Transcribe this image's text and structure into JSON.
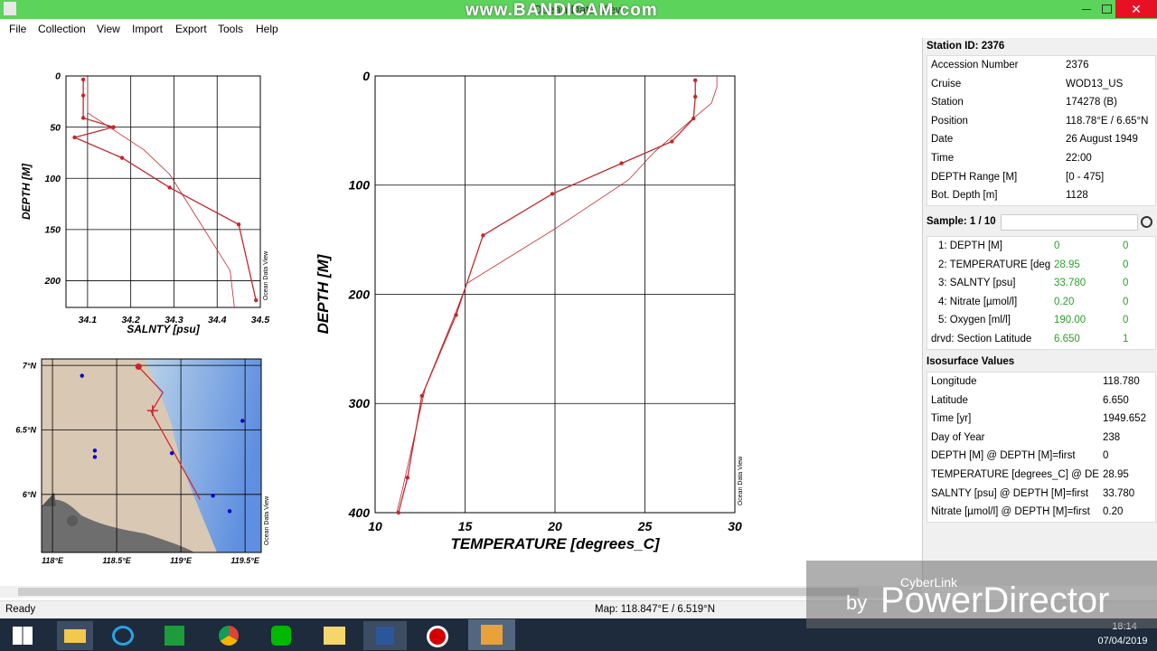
{
  "window": {
    "title": "Ocean Data View",
    "watermark": "www.BANDICAM.com"
  },
  "menu": [
    "File",
    "Collection",
    "View",
    "Import",
    "Export",
    "Tools",
    "Help"
  ],
  "salinity_plot": {
    "type": "line",
    "x_label": "SALNTY [psu]",
    "y_label": "DEPTH [M]",
    "side_label": "Ocean Data View",
    "xlim": [
      34.05,
      34.5
    ],
    "ylim": [
      0,
      226
    ],
    "y_inverted": true,
    "grid": true,
    "xticks": [
      34.1,
      34.2,
      34.3,
      34.4,
      34.5
    ],
    "yticks": [
      0,
      50,
      100,
      150,
      200
    ],
    "series": [
      {
        "color": "#c0282d",
        "markers": true,
        "width": 1.3,
        "x": [
          34.09,
          34.09,
          34.09,
          34.16,
          34.07,
          34.18,
          34.29,
          34.45,
          34.49
        ],
        "values": [
          3.5,
          19,
          41,
          50,
          60,
          80,
          109,
          145,
          219
        ]
      },
      {
        "color": "#c0282d",
        "markers": false,
        "width": 0.8,
        "x": [
          34.1,
          34.1,
          34.1,
          34.23,
          34.29,
          34.36,
          34.43,
          34.44
        ],
        "values": [
          1,
          14,
          36,
          72,
          96,
          143,
          190,
          226
        ]
      }
    ]
  },
  "temperature_plot": {
    "type": "line",
    "x_label": "TEMPERATURE [degrees_C]",
    "y_label": "DEPTH [M]",
    "side_label": "Ocean Data View",
    "xlim": [
      10,
      30
    ],
    "ylim": [
      0,
      400
    ],
    "y_inverted": true,
    "grid": true,
    "xticks": [
      10,
      15,
      20,
      25,
      30
    ],
    "yticks": [
      0,
      100,
      200,
      300,
      400
    ],
    "series": [
      {
        "color": "#c0282d",
        "markers": true,
        "width": 1.3,
        "x": [
          27.8,
          27.8,
          27.7,
          26.5,
          23.7,
          19.85,
          16,
          14.5,
          12.6,
          11.8,
          11.3
        ],
        "values": [
          4,
          19,
          39,
          60,
          80,
          108,
          146,
          219,
          293,
          368,
          400
        ]
      },
      {
        "color": "#c0282d",
        "markers": false,
        "width": 0.8,
        "x": [
          29,
          29,
          28.7,
          27.6,
          25.5,
          24.1,
          20,
          15.1,
          14.4,
          12.8,
          11.5,
          11.2
        ],
        "values": [
          0,
          10,
          25,
          40,
          70,
          95,
          140,
          190,
          220,
          285,
          380,
          400
        ]
      }
    ]
  },
  "map": {
    "type": "scatter",
    "side_label": "Ocean Data View",
    "xlim": [
      117.915,
      119.626
    ],
    "ylim": [
      5.55,
      7.05
    ],
    "grid": true,
    "xticks": [
      {
        "value": 118,
        "label": "118°E"
      },
      {
        "value": 118.5,
        "label": "118.5°E"
      },
      {
        "value": 119,
        "label": "119°E"
      },
      {
        "value": 119.5,
        "label": "119.5°E"
      }
    ],
    "yticks": [
      {
        "value": 6,
        "label": "6°N"
      },
      {
        "value": 6.5,
        "label": "6.5°N"
      },
      {
        "value": 7,
        "label": "7°N"
      }
    ],
    "stations": {
      "color": "#0000cc",
      "x": [
        118.23,
        118.33,
        118.33,
        119.48,
        119.25,
        119.38,
        118.93
      ],
      "values": [
        6.92,
        6.34,
        6.29,
        6.57,
        5.99,
        5.87,
        6.32
      ]
    },
    "track": {
      "color": "#d0202a",
      "x": [
        118.67,
        118.86,
        118.77,
        119.15
      ],
      "values": [
        6.99,
        6.79,
        6.64,
        5.96
      ]
    },
    "current": {
      "color": "#d0202a",
      "x": 118.78,
      "y": 6.65
    }
  },
  "station": {
    "title": "Station ID: 2376",
    "rows": [
      [
        "Accession Number",
        "2376"
      ],
      [
        "Cruise",
        "WOD13_US"
      ],
      [
        "Station",
        "174278 (B)"
      ],
      [
        "Position",
        "118.78°E / 6.65°N"
      ],
      [
        "Date",
        "26 August 1949"
      ],
      [
        "Time",
        "22:00"
      ],
      [
        "DEPTH Range [M]",
        "[0 - 475]"
      ],
      [
        "Bot. Depth [m]",
        "1128"
      ]
    ]
  },
  "sample": {
    "title": "Sample: 1 / 10",
    "rows": [
      [
        "1: DEPTH [M]",
        "0",
        "0"
      ],
      [
        "2: TEMPERATURE [deg",
        "28.95",
        "0"
      ],
      [
        "3: SALNTY [psu]",
        "33.780",
        "0"
      ],
      [
        "4: Nitrate [µmol/l]",
        "0.20",
        "0"
      ],
      [
        "5: Oxygen [ml/l]",
        "190.00",
        "0"
      ]
    ],
    "derived": [
      "drvd: Section Latitude",
      "6.650",
      "1"
    ]
  },
  "isosurface": {
    "title": "Isosurface Values",
    "rows": [
      [
        "Longitude",
        "118.780"
      ],
      [
        "Latitude",
        "6.650"
      ],
      [
        "Time [yr]",
        "1949.652"
      ],
      [
        "Day of Year",
        "238"
      ],
      [
        "DEPTH [M] @ DEPTH [M]=first",
        "0"
      ],
      [
        "TEMPERATURE [degrees_C] @ DEP...",
        "28.95"
      ],
      [
        "SALNTY [psu] @ DEPTH [M]=first",
        "33.780"
      ],
      [
        "Nitrate [µmol/l] @ DEPTH [M]=first",
        "0.20"
      ]
    ]
  },
  "status": {
    "left": "Ready",
    "map": "Map:  118.847°E / 6.519°N"
  },
  "overlay": {
    "by": "by",
    "brand": "CyberLink",
    "product": "PowerDirector"
  },
  "clock": {
    "time": "18:14",
    "date": "07/04/2019"
  }
}
